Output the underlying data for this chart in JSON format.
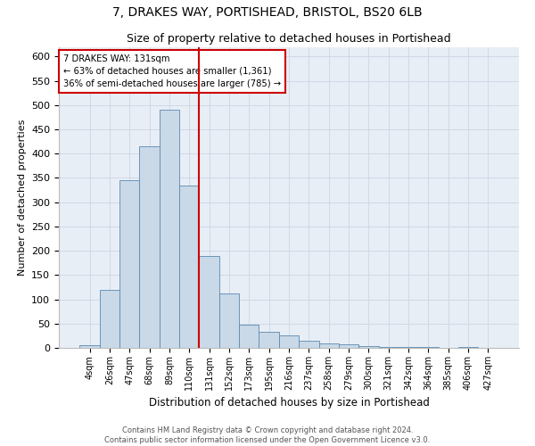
{
  "title1": "7, DRAKES WAY, PORTISHEAD, BRISTOL, BS20 6LB",
  "title2": "Size of property relative to detached houses in Portishead",
  "xlabel": "Distribution of detached houses by size in Portishead",
  "ylabel": "Number of detached properties",
  "categories": [
    "4sqm",
    "26sqm",
    "47sqm",
    "68sqm",
    "89sqm",
    "110sqm",
    "131sqm",
    "152sqm",
    "173sqm",
    "195sqm",
    "216sqm",
    "237sqm",
    "258sqm",
    "279sqm",
    "300sqm",
    "321sqm",
    "342sqm",
    "364sqm",
    "385sqm",
    "406sqm",
    "427sqm"
  ],
  "values": [
    5,
    120,
    345,
    415,
    490,
    335,
    190,
    112,
    48,
    33,
    25,
    14,
    10,
    7,
    3,
    2,
    1,
    1,
    0,
    1,
    0
  ],
  "bar_color": "#c9d9e8",
  "bar_edge_color": "#5a8ab0",
  "vline_color": "#cc0000",
  "annotation_box_color": "#cc0000",
  "ylim_max": 620,
  "yticks": [
    0,
    50,
    100,
    150,
    200,
    250,
    300,
    350,
    400,
    450,
    500,
    550,
    600
  ],
  "grid_color": "#d0d8e8",
  "bg_color": "#e8eef5",
  "marker_label": "7 DRAKES WAY: 131sqm",
  "annotation_line1": "← 63% of detached houses are smaller (1,361)",
  "annotation_line2": "36% of semi-detached houses are larger (785) →",
  "footer1": "Contains HM Land Registry data © Crown copyright and database right 2024.",
  "footer2": "Contains public sector information licensed under the Open Government Licence v3.0."
}
